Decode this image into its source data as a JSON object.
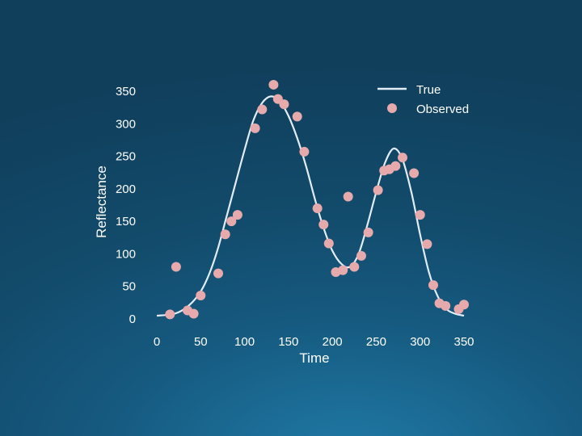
{
  "chart_data": {
    "type": "scatter",
    "title": "",
    "xlabel": "Time",
    "ylabel": "Reflectance",
    "xlim": [
      0,
      350
    ],
    "ylim": [
      0,
      350
    ],
    "xticks": [
      "0",
      "50",
      "100",
      "150",
      "200",
      "250",
      "300",
      "350"
    ],
    "yticks": [
      "0",
      "50",
      "100",
      "150",
      "200",
      "250",
      "300",
      "350"
    ],
    "grid": false,
    "legend_position": "top-right",
    "series": [
      {
        "name": "True",
        "kind": "line",
        "color": "#e2edf6",
        "x": [
          0,
          10,
          20,
          30,
          40,
          50,
          60,
          70,
          80,
          90,
          100,
          110,
          120,
          130,
          140,
          150,
          160,
          170,
          180,
          190,
          200,
          210,
          220,
          230,
          240,
          250,
          260,
          270,
          280,
          290,
          300,
          310,
          320,
          330,
          340,
          350
        ],
        "y": [
          5,
          6,
          8,
          14,
          25,
          42,
          70,
          110,
          160,
          210,
          260,
          305,
          332,
          342,
          335,
          312,
          278,
          235,
          185,
          140,
          105,
          85,
          80,
          100,
          145,
          195,
          240,
          262,
          245,
          195,
          130,
          72,
          35,
          15,
          8,
          5
        ]
      },
      {
        "name": "Observed",
        "kind": "scatter",
        "color": "#e6aaad",
        "x": [
          15,
          22,
          35,
          42,
          50,
          70,
          78,
          85,
          92,
          112,
          120,
          133,
          138,
          145,
          160,
          168,
          183,
          190,
          196,
          204,
          212,
          218,
          225,
          233,
          241,
          252,
          259,
          265,
          272,
          280,
          293,
          300,
          308,
          315,
          322,
          329,
          344,
          350
        ],
        "y": [
          7,
          80,
          13,
          8,
          36,
          70,
          130,
          150,
          160,
          293,
          322,
          360,
          338,
          330,
          311,
          257,
          170,
          145,
          116,
          72,
          75,
          188,
          80,
          97,
          133,
          198,
          228,
          230,
          235,
          248,
          224,
          160,
          115,
          52,
          24,
          20,
          15,
          22
        ]
      }
    ]
  }
}
